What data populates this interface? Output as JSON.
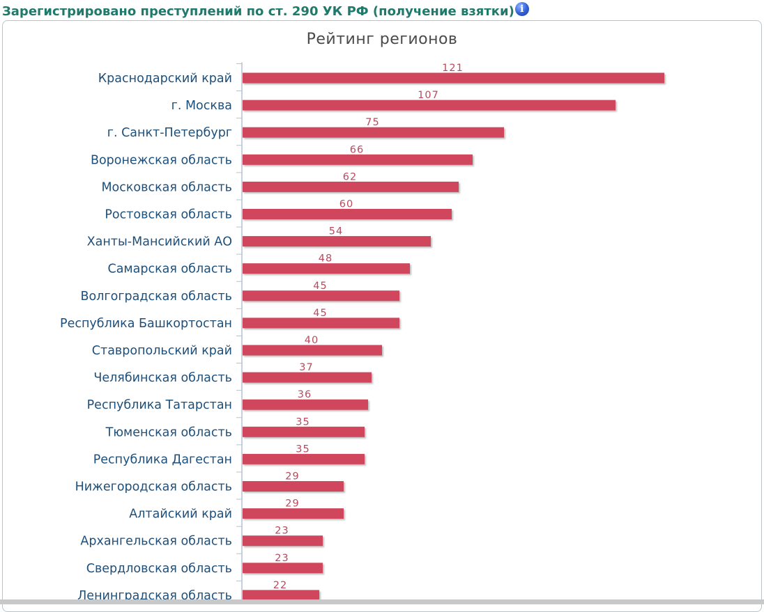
{
  "header": {
    "title": "Зарегистрировано преступлений по ст. 290 УК РФ (получение взятки)",
    "info_icon": "info-icon"
  },
  "chart_data": {
    "type": "bar",
    "orientation": "horizontal",
    "title": "Рейтинг регионов",
    "xlabel": "",
    "ylabel": "",
    "xlim": [
      0,
      121
    ],
    "legend": "none",
    "bar_color": "#d0465d",
    "label_color": "#b84a5e",
    "category_color": "#1d4f7a",
    "categories": [
      "Краснодарский край",
      "г. Москва",
      "г. Санкт-Петербург",
      "Воронежская область",
      "Московская область",
      "Ростовская область",
      "Ханты-Мансийский АО",
      "Самарская область",
      "Волгоградская область",
      "Республика Башкортостан",
      "Ставропольский край",
      "Челябинская область",
      "Республика Татарстан",
      "Тюменская область",
      "Республика Дагестан",
      "Нижегородская область",
      "Алтайский край",
      "Архангельская область",
      "Свердловская область",
      "Ленинградская область"
    ],
    "values": [
      121,
      107,
      75,
      66,
      62,
      60,
      54,
      48,
      45,
      45,
      40,
      37,
      36,
      35,
      35,
      29,
      29,
      23,
      23,
      22
    ]
  }
}
